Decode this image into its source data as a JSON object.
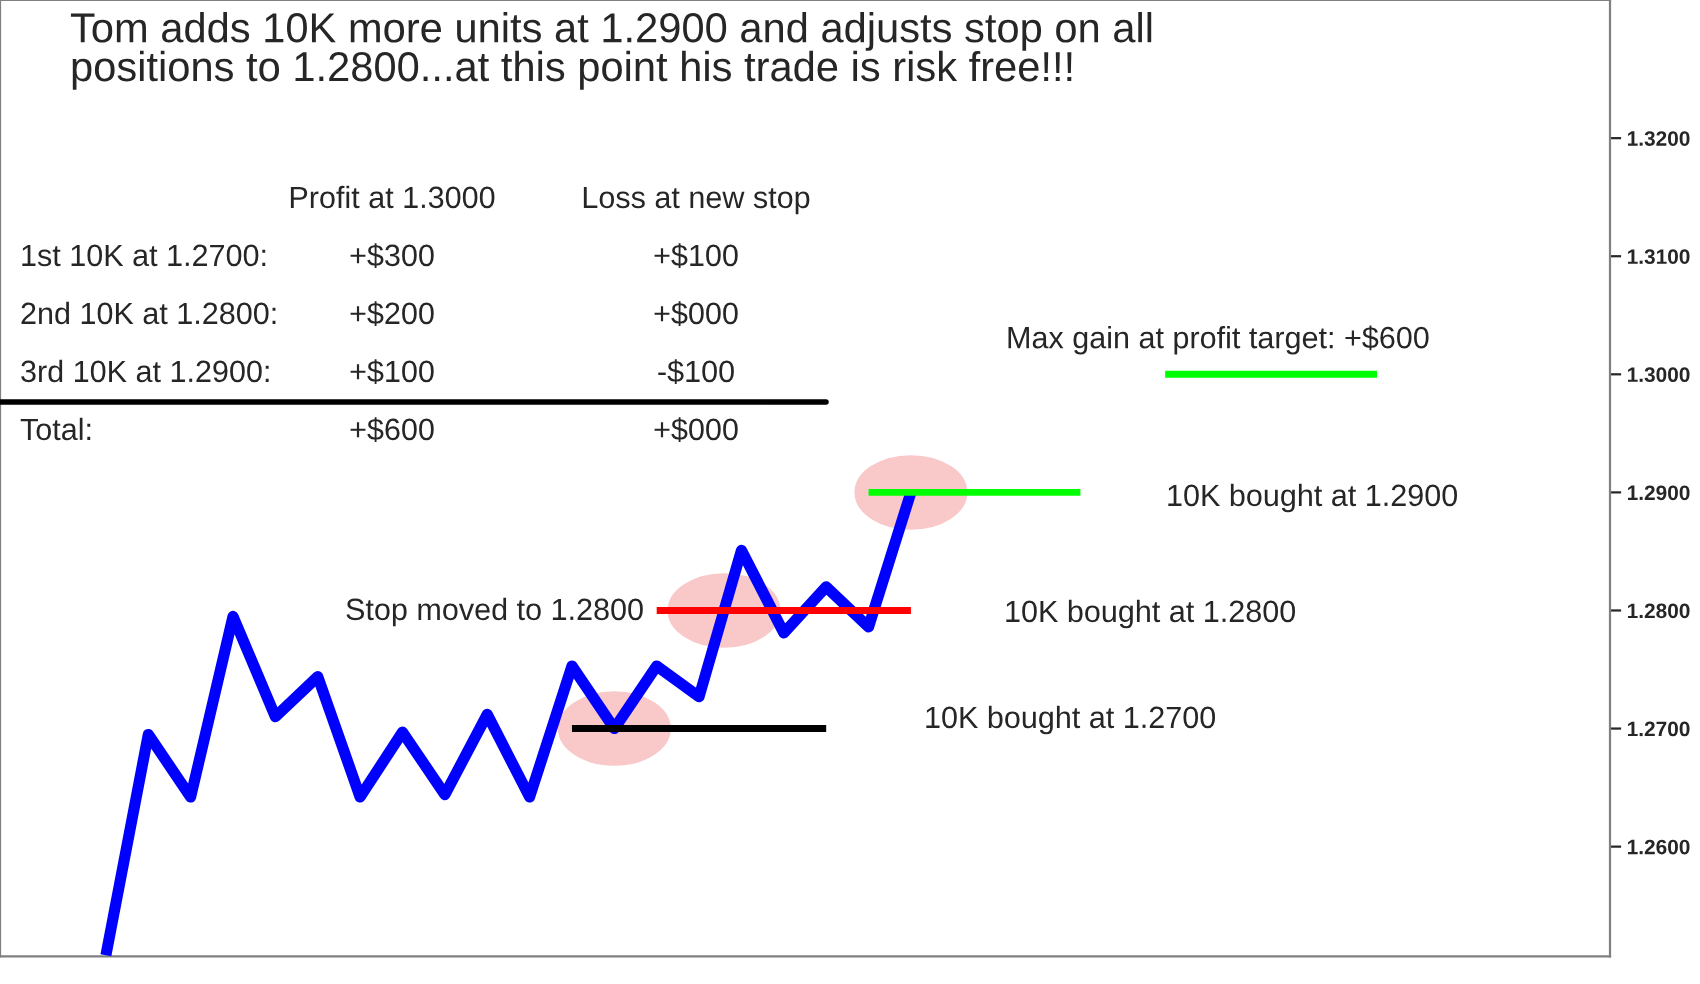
{
  "chart_data": {
    "type": "line",
    "title": "Tom adds 10K more units at 1.2900 and adjusts stop on all\npositions to 1.2800...at this point his trade is risk free!!!",
    "categories": [
      null,
      null,
      null,
      null,
      null,
      null,
      null,
      null,
      null,
      null,
      null,
      null,
      null,
      null,
      null,
      null,
      null,
      null,
      null,
      null,
      null,
      null,
      null,
      null,
      null,
      null,
      null,
      null,
      null,
      null,
      null,
      null,
      null,
      null,
      null,
      null,
      null,
      null
    ],
    "ylim": [
      1.2507,
      1.3317
    ],
    "yticks": [
      {
        "value": 1.26,
        "label": "1.2600"
      },
      {
        "value": 1.27,
        "label": "1.2700"
      },
      {
        "value": 1.28,
        "label": "1.2800"
      },
      {
        "value": 1.29,
        "label": "1.2900"
      },
      {
        "value": 1.3,
        "label": "1.3000"
      },
      {
        "value": 1.31,
        "label": "1.3100"
      },
      {
        "value": 1.32,
        "label": "1.3200"
      }
    ],
    "tick_labels": "y",
    "series": [
      {
        "color": "#0000ff",
        "values": [
          null,
          null,
          1.2508,
          1.2695,
          1.2642,
          1.2795,
          1.271,
          1.2744,
          1.2642,
          1.2697,
          1.2644,
          1.2712,
          1.2642,
          1.2753,
          1.27,
          1.2753,
          1.2727,
          1.2851,
          1.2781,
          1.282,
          1.2786,
          1.29,
          null,
          null,
          null,
          null,
          null,
          null,
          null,
          null,
          null,
          null,
          null,
          null,
          null,
          null,
          null,
          null
        ]
      },
      {
        "type": "line",
        "color": "#000000",
        "values": [
          null,
          null,
          null,
          null,
          null,
          null,
          null,
          null,
          null,
          null,
          null,
          null,
          null,
          1.27,
          1.27,
          1.27,
          1.27,
          1.27,
          1.27,
          1.27,
          null,
          null,
          null,
          null,
          null,
          null,
          null,
          null,
          null,
          null,
          null,
          null,
          null,
          null,
          null,
          null,
          null,
          null
        ]
      },
      {
        "type": "line",
        "color": "#ff0000",
        "values": [
          null,
          null,
          null,
          null,
          null,
          null,
          null,
          null,
          null,
          null,
          null,
          null,
          null,
          null,
          null,
          1.28,
          1.28,
          1.28,
          1.28,
          1.28,
          1.28,
          1.28,
          null,
          null,
          null,
          null,
          null,
          null,
          null,
          null,
          null,
          null,
          null,
          null,
          null,
          null,
          null,
          null
        ]
      },
      {
        "type": "line",
        "color": "#00ff00",
        "values": [
          null,
          null,
          null,
          null,
          null,
          null,
          null,
          null,
          null,
          null,
          null,
          null,
          null,
          null,
          null,
          null,
          null,
          null,
          null,
          null,
          1.29,
          1.29,
          1.29,
          1.29,
          1.29,
          1.29,
          null,
          null,
          null,
          null,
          null,
          null,
          null,
          null,
          null,
          null,
          null,
          null
        ]
      },
      {
        "type": "line",
        "color": "#00ff00",
        "values": [
          null,
          null,
          null,
          null,
          null,
          null,
          null,
          null,
          null,
          null,
          null,
          null,
          null,
          null,
          null,
          null,
          null,
          null,
          null,
          null,
          null,
          null,
          null,
          null,
          null,
          null,
          null,
          1.3,
          1.3,
          1.3,
          1.3,
          1.3,
          1.3,
          null,
          null,
          null,
          null,
          null
        ]
      }
    ],
    "annotations": [
      "10K bought at 1.2700",
      "10K bought at 1.2800",
      "10K bought at 1.2900",
      "Stop moved to 1.2800",
      "Max gain at profit target: +$600",
      "Profit at 1.3000",
      "Loss at new stop",
      "1st 10K at 1.2700:",
      "+$300",
      "+$100",
      "2nd 10K at 1.2800:",
      "+$200",
      "+$000",
      "3rd 10K at 1.2900:",
      "+$100",
      "-$100",
      "Total:",
      "+$600",
      "+$000"
    ]
  }
}
